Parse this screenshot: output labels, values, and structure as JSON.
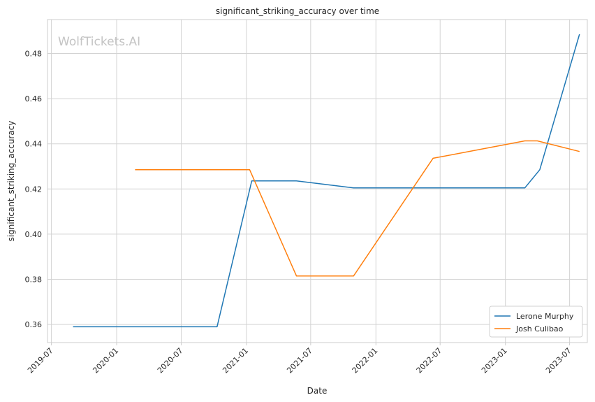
{
  "chart_data": {
    "type": "line",
    "title": "significant_striking_accuracy over time",
    "xlabel": "Date",
    "ylabel": "significant_striking_accuracy",
    "watermark": "WolfTickets.AI",
    "grid": true,
    "legend_position": "bottom-right",
    "xlim": [
      "2019-06-20",
      "2023-08-20"
    ],
    "ylim": [
      0.352,
      0.495
    ],
    "x_ticks": [
      "2019-07",
      "2020-01",
      "2020-07",
      "2021-01",
      "2021-07",
      "2022-01",
      "2022-07",
      "2023-01",
      "2023-07"
    ],
    "y_ticks": [
      "0.36",
      "0.38",
      "0.40",
      "0.42",
      "0.44",
      "0.46",
      "0.48"
    ],
    "series": [
      {
        "name": "Lerone Murphy",
        "color": "#1f77b4",
        "points": [
          {
            "x": "2019-08-31",
            "y": 0.359
          },
          {
            "x": "2020-10-10",
            "y": 0.359
          },
          {
            "x": "2021-01-16",
            "y": 0.4236
          },
          {
            "x": "2021-05-22",
            "y": 0.4236
          },
          {
            "x": "2021-10-30",
            "y": 0.4205
          },
          {
            "x": "2023-02-25",
            "y": 0.4205
          },
          {
            "x": "2023-04-08",
            "y": 0.4285
          },
          {
            "x": "2023-07-29",
            "y": 0.4885
          }
        ]
      },
      {
        "name": "Josh Culibao",
        "color": "#ff7f0e",
        "points": [
          {
            "x": "2020-02-22",
            "y": 0.4285
          },
          {
            "x": "2021-01-10",
            "y": 0.4285
          },
          {
            "x": "2021-05-22",
            "y": 0.3815
          },
          {
            "x": "2021-10-30",
            "y": 0.3815
          },
          {
            "x": "2022-06-11",
            "y": 0.4336
          },
          {
            "x": "2023-02-25",
            "y": 0.4413
          },
          {
            "x": "2023-04-01",
            "y": 0.4413
          },
          {
            "x": "2023-07-29",
            "y": 0.4366
          }
        ]
      }
    ]
  }
}
